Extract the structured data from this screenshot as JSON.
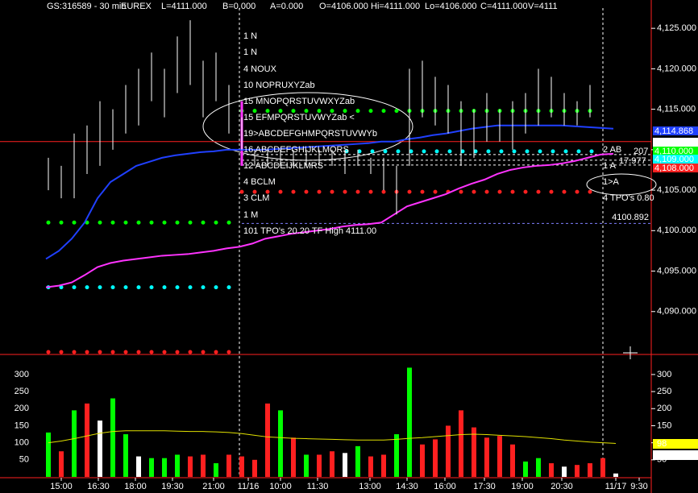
{
  "header": [
    {
      "text": "GS:316589 - 30 min",
      "color": "#ffffff"
    },
    {
      "text": "EUREX",
      "color": "#ffffff"
    },
    {
      "text": "L=4111.000",
      "color": "#00ff00"
    },
    {
      "text": "B=0.000",
      "color": "#ffffff"
    },
    {
      "text": "A=0.000",
      "color": "#ffffff"
    },
    {
      "text": "O=4106.000",
      "color": "#00ff00"
    },
    {
      "text": "Hi=4111.000",
      "color": "#ffffff"
    },
    {
      "text": "Lo=4106.000",
      "color": "#ffffff"
    },
    {
      "text": "C=4111.000",
      "color": "#00ff00"
    },
    {
      "text": "V=4111",
      "color": "#ffffff"
    }
  ],
  "chart_data": [
    {
      "type": "ohlc",
      "color": "#ffffff",
      "ylim": [
        4084.7,
        4128.5
      ],
      "yticks": [
        {
          "value": 4090,
          "label": "4,090.000"
        },
        {
          "value": 4095,
          "label": "4,095.000"
        },
        {
          "value": 4100,
          "label": "4,100.000"
        },
        {
          "value": 4105,
          "label": "4,105.000"
        },
        {
          "value": 4110,
          "label": "4,110.000"
        },
        {
          "value": 4115,
          "label": "4,115.000"
        },
        {
          "value": 4120,
          "label": "4,120.000"
        },
        {
          "value": 4125,
          "label": "4,125.000"
        }
      ],
      "high": [
        4109,
        4108,
        4112,
        4113,
        4116,
        4115,
        4118,
        4120,
        4122,
        4120,
        4124,
        4126,
        4121,
        4122,
        4118,
        4114,
        4110,
        4110,
        4110,
        4110,
        4110,
        4110,
        4110,
        4110,
        4110,
        4109,
        4109,
        4108,
        4120,
        4121,
        4119,
        4118,
        4116,
        4115,
        4117,
        4115,
        4116,
        4117,
        4120,
        4119,
        4117,
        4116,
        4118
      ],
      "low": [
        4105,
        4104,
        4104,
        4107,
        4108,
        4110,
        4112,
        4113,
        4116,
        4114,
        4117,
        4118,
        4114,
        4116,
        4112,
        4110,
        4108,
        4108,
        4108,
        4108,
        4108,
        4108,
        4108,
        4107,
        4108,
        4107,
        4105,
        4102,
        4108,
        4114,
        4113,
        4112,
        4108,
        4109,
        4111,
        4111,
        4110,
        4112,
        4113,
        4114,
        4113,
        4113,
        4114
      ],
      "series": [
        {
          "color": "#2040ff",
          "values": [
            4096.5,
            4097.5,
            4099,
            4101,
            4104,
            4106,
            4107,
            4108,
            4108.5,
            4109,
            4109.3,
            4109.5,
            4109.7,
            4109.8,
            4110,
            4110,
            4110,
            4110,
            4110.1,
            4110.2,
            4110.3,
            4110.4,
            4110.5,
            4110.6,
            4110.7,
            4110.8,
            4111,
            4111,
            4111.3,
            4111.5,
            4111.8,
            4112,
            4112.3,
            4112.6,
            4112.8,
            4113,
            4113,
            4113,
            4113,
            4113,
            4113,
            4112.9,
            4112.8,
            4112.7,
            4112.6
          ]
        },
        {
          "color": "#ff33ff",
          "values": [
            4093,
            4093.2,
            4093.6,
            4094.5,
            4095.5,
            4096,
            4096.3,
            4096.5,
            4096.7,
            4096.9,
            4097,
            4097.1,
            4097.3,
            4097.5,
            4097.8,
            4098,
            4098.4,
            4099,
            4099.3,
            4099.6,
            4099.8,
            4100,
            4100.2,
            4100.5,
            4100.7,
            4100.8,
            4101,
            4102,
            4103,
            4103.5,
            4104,
            4104.5,
            4105.2,
            4105.8,
            4106.3,
            4107,
            4107.5,
            4107.8,
            4108,
            4108.1,
            4108.3,
            4108.6,
            4109,
            4109.4,
            4109.5
          ]
        }
      ],
      "levels": [
        {
          "value": 4101,
          "color": "#00ff00"
        },
        {
          "value": 4093,
          "color": "#00ffff"
        },
        {
          "value": 4085,
          "color": "#ff2020"
        },
        {
          "value": 4114.8,
          "color": "#00ff00"
        },
        {
          "value": 4109.8,
          "color": "#00ffff"
        },
        {
          "value": 4104.8,
          "color": "#ff2020"
        }
      ],
      "ref_lines": [
        {
          "value": 4111,
          "color": "#ff2020"
        },
        {
          "value": 4109.4,
          "color": "#ffffff"
        },
        {
          "value": 4108.7,
          "color": "#ffffff"
        },
        {
          "value": 4108.1,
          "color": "#ffffff"
        },
        {
          "value": 4100.892,
          "color": "#8080ff"
        }
      ],
      "annotations": [
        {
          "text": "1 N",
          "color": "#ffff00"
        },
        {
          "text": "1 N",
          "color": "#ffff00"
        },
        {
          "text": "4 NOUX",
          "color": "#ffff00"
        },
        {
          "text": "10 NOPRUXYZab",
          "color": "#ffff00"
        },
        {
          "text": "15 MNOPQRSTUVWXYZab",
          "color": "#ffff00"
        },
        {
          "text": "15 EFMPQRSTUVWYZab <",
          "color": "#ff3030"
        },
        {
          "text": "19>ABCDEFGHMPQRSTUVWYb",
          "color": "#00ff00"
        },
        {
          "text": "16 ABCDEFGHIJKLMQRS",
          "color": "#ffff00"
        },
        {
          "text": "12 ABCDEIJKLMRS",
          "color": "#ffffff"
        },
        {
          "text": "4 BCLM",
          "color": "#ffff00"
        },
        {
          "text": "3 CLM",
          "color": "#ffff00"
        },
        {
          "text": "1 M",
          "color": "#ffff00"
        },
        {
          "text": "101 TPO's 20.20 TF High 4111.00",
          "color": "#ff33ff"
        },
        {
          "text": "2 AB",
          "color": "#ffff00"
        },
        {
          "text": "1 A",
          "color": "#ffff00"
        },
        {
          "text": "1>A",
          "color": "#00ff00"
        },
        {
          "text": "4 TPO's 0.80",
          "color": "#ff33ff"
        },
        {
          "text": "207",
          "color": "#8080ff"
        },
        {
          "text": "17.977",
          "color": "#8080ff"
        }
      ],
      "price_boxes": [
        {
          "label": "4,114.868",
          "color": "#2040ff",
          "text_color": "#ffffff"
        },
        {
          "label": "4,111.000",
          "color": "#ffffff",
          "text_color": "#000000"
        },
        {
          "label": "4,110.000",
          "color": "#00ff00",
          "text_color": "#000000"
        },
        {
          "label": "4,109.000",
          "color": "#00ffff",
          "text_color": "#000000"
        },
        {
          "label": "4,108.000",
          "color": "#ff2020",
          "text_color": "#000000"
        }
      ]
    },
    {
      "type": "bar",
      "ylim": [
        0,
        347
      ],
      "yticks": [
        50,
        100,
        150,
        200,
        250,
        300
      ],
      "values": [
        130,
        75,
        195,
        215,
        165,
        230,
        125,
        60,
        55,
        55,
        65,
        60,
        65,
        40,
        65,
        60,
        50,
        215,
        195,
        115,
        65,
        65,
        75,
        70,
        90,
        60,
        65,
        125,
        320,
        95,
        110,
        150,
        195,
        145,
        115,
        120,
        95,
        45,
        55,
        40,
        30,
        35,
        40,
        55,
        10
      ],
      "bar_colors": [
        "#00ff00",
        "#ff2020",
        "#00ff00",
        "#ff2020",
        "#ffffff",
        "#00ff00",
        "#00ff00",
        "#ffffff",
        "#00ff00",
        "#00ff00",
        "#00ff00",
        "#ff2020",
        "#ff2020",
        "#00ff00",
        "#ff2020",
        "#ff2020",
        "#ff2020",
        "#ff2020",
        "#00ff00",
        "#ff2020",
        "#00ff00",
        "#ff2020",
        "#ff2020",
        "#ffffff",
        "#00ff00",
        "#ff2020",
        "#ff2020",
        "#00ff00",
        "#00ff00",
        "#ff2020",
        "#ff2020",
        "#ff2020",
        "#ff2020",
        "#ff2020",
        "#ff2020",
        "#ff2020",
        "#ff2020",
        "#00ff00",
        "#00ff00",
        "#ff2020",
        "#ffffff",
        "#ff2020",
        "#ff2020",
        "#ff2020",
        "#ffffff"
      ],
      "average": {
        "color": "#e0e000",
        "values": [
          100,
          105,
          112,
          120,
          128,
          133,
          135,
          135,
          135,
          135,
          134,
          133,
          133,
          132,
          130,
          127,
          122,
          117,
          115,
          113,
          112,
          111,
          110,
          109,
          108,
          108,
          108,
          110,
          113,
          115,
          118,
          121,
          124,
          125,
          124,
          122,
          120,
          118,
          115,
          112,
          108,
          105,
          102,
          100,
          98
        ]
      },
      "value_boxes": [
        {
          "label": "98",
          "color": "#ffff00",
          "text_color": "#000000"
        },
        {
          "label": "2",
          "color": "#ffffff",
          "text_color": "#000000"
        }
      ],
      "time_labels": [
        "15:00",
        "16:30",
        "18:00",
        "19:30",
        "21:00",
        "11/16",
        "10:00",
        "11:30",
        "13:00",
        "14:30",
        "16:00",
        "17:30",
        "19:00",
        "20:30",
        "11/17",
        "9:30"
      ]
    }
  ]
}
